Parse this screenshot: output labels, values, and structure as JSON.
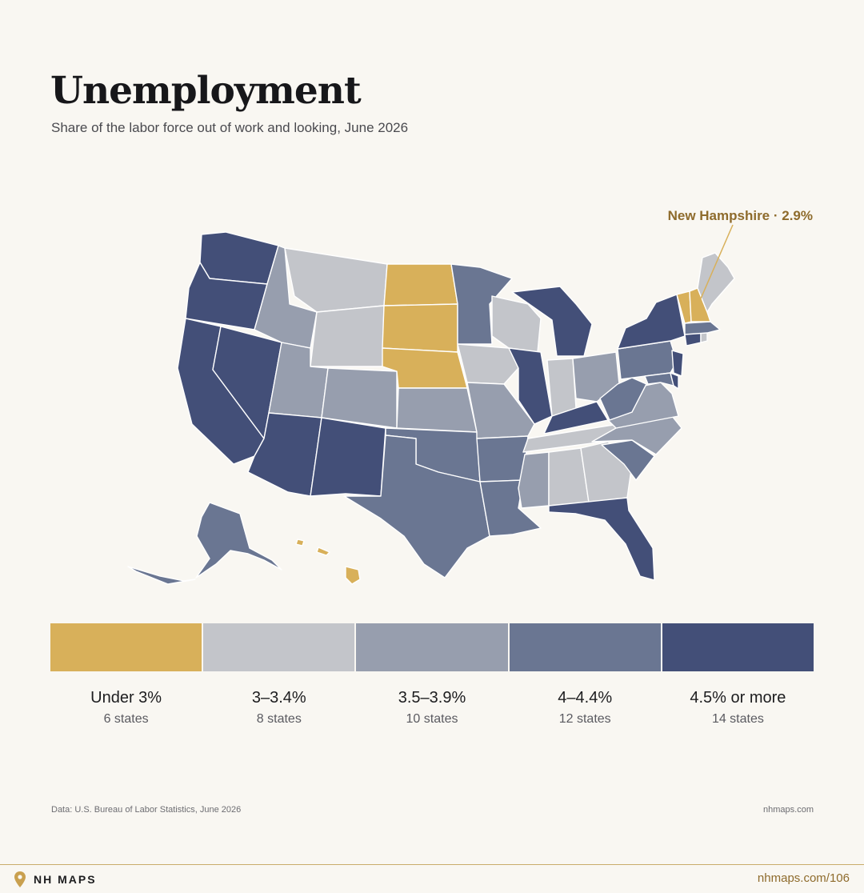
{
  "header": {
    "title": "Unemployment",
    "subtitle": "Share of the labor force out of work and looking, June 2026"
  },
  "map": {
    "callout": "New Hampshire · 2.9%",
    "highlight_color": "#d8b05a"
  },
  "legend": {
    "bins": [
      {
        "label": "Under 3%",
        "count": "6 states",
        "color": "#d8b05a"
      },
      {
        "label": "3–3.4%",
        "count": "8 states",
        "color": "#c3c5ca"
      },
      {
        "label": "3.5–3.9%",
        "count": "10 states",
        "color": "#979eae"
      },
      {
        "label": "4–4.4%",
        "count": "12 states",
        "color": "#6a7692"
      },
      {
        "label": "4.5% or more",
        "count": "14 states",
        "color": "#434f78"
      }
    ]
  },
  "footer": {
    "source": "Data: U.S. Bureau of Labor Statistics, June 2026",
    "site": "nhmaps.com",
    "brand": "NH MAPS",
    "url": "nhmaps.com/106"
  }
}
